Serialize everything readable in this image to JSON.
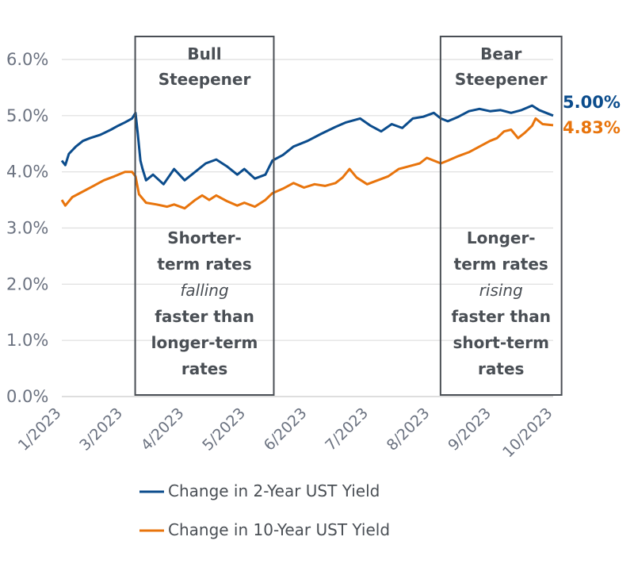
{
  "chart_data": {
    "type": "line",
    "y_ticks": [
      "6.0%",
      "5.0%",
      "4.0%",
      "3.0%",
      "2.0%",
      "1.0%",
      "0.0%"
    ],
    "ylim": [
      0,
      6
    ],
    "x_ticks": [
      "1/2023",
      "3/2023",
      "4/2023",
      "5/2023",
      "6/2023",
      "7/2023",
      "8/2023",
      "9/2023",
      "10/2023"
    ],
    "grid": true,
    "colors": {
      "two_year": "#0b4c8c",
      "ten_year": "#e8740c",
      "box": "#4a4f55",
      "grid": "#dedede"
    },
    "series": [
      {
        "name": "Change in 2-Year UST Yield",
        "key": "two_year",
        "values": [
          [
            0,
            4.2
          ],
          [
            0.05,
            4.12
          ],
          [
            0.1,
            4.32
          ],
          [
            0.2,
            4.45
          ],
          [
            0.3,
            4.55
          ],
          [
            0.4,
            4.6
          ],
          [
            0.55,
            4.66
          ],
          [
            0.7,
            4.75
          ],
          [
            0.8,
            4.82
          ],
          [
            0.9,
            4.88
          ],
          [
            1.0,
            4.95
          ],
          [
            1.05,
            5.05
          ],
          [
            1.08,
            4.7
          ],
          [
            1.12,
            4.2
          ],
          [
            1.15,
            4.05
          ],
          [
            1.2,
            3.85
          ],
          [
            1.3,
            3.95
          ],
          [
            1.45,
            3.78
          ],
          [
            1.6,
            4.05
          ],
          [
            1.75,
            3.85
          ],
          [
            1.9,
            4.0
          ],
          [
            2.05,
            4.15
          ],
          [
            2.2,
            4.22
          ],
          [
            2.35,
            4.1
          ],
          [
            2.5,
            3.95
          ],
          [
            2.6,
            4.05
          ],
          [
            2.75,
            3.88
          ],
          [
            2.9,
            3.95
          ],
          [
            3.0,
            4.2
          ],
          [
            3.15,
            4.3
          ],
          [
            3.3,
            4.45
          ],
          [
            3.5,
            4.55
          ],
          [
            3.7,
            4.68
          ],
          [
            3.9,
            4.8
          ],
          [
            4.05,
            4.88
          ],
          [
            4.25,
            4.95
          ],
          [
            4.4,
            4.82
          ],
          [
            4.55,
            4.72
          ],
          [
            4.7,
            4.85
          ],
          [
            4.85,
            4.78
          ],
          [
            5.0,
            4.95
          ],
          [
            5.15,
            4.98
          ],
          [
            5.3,
            5.05
          ],
          [
            5.4,
            4.95
          ],
          [
            5.5,
            4.9
          ],
          [
            5.65,
            4.98
          ],
          [
            5.8,
            5.08
          ],
          [
            5.95,
            5.12
          ],
          [
            6.1,
            5.08
          ],
          [
            6.25,
            5.1
          ],
          [
            6.4,
            5.05
          ],
          [
            6.55,
            5.1
          ],
          [
            6.7,
            5.18
          ],
          [
            6.8,
            5.1
          ],
          [
            6.9,
            5.05
          ],
          [
            7.0,
            5.0
          ]
        ]
      },
      {
        "name": "Change in 10-Year UST Yield",
        "key": "ten_year",
        "values": [
          [
            0,
            3.5
          ],
          [
            0.05,
            3.4
          ],
          [
            0.15,
            3.55
          ],
          [
            0.3,
            3.65
          ],
          [
            0.45,
            3.75
          ],
          [
            0.6,
            3.85
          ],
          [
            0.75,
            3.92
          ],
          [
            0.9,
            4.0
          ],
          [
            1.0,
            4.0
          ],
          [
            1.05,
            3.92
          ],
          [
            1.1,
            3.6
          ],
          [
            1.2,
            3.45
          ],
          [
            1.35,
            3.42
          ],
          [
            1.5,
            3.38
          ],
          [
            1.6,
            3.42
          ],
          [
            1.75,
            3.35
          ],
          [
            1.9,
            3.5
          ],
          [
            2.0,
            3.58
          ],
          [
            2.1,
            3.5
          ],
          [
            2.2,
            3.58
          ],
          [
            2.35,
            3.48
          ],
          [
            2.5,
            3.4
          ],
          [
            2.6,
            3.45
          ],
          [
            2.75,
            3.38
          ],
          [
            2.9,
            3.5
          ],
          [
            3.0,
            3.62
          ],
          [
            3.15,
            3.7
          ],
          [
            3.3,
            3.8
          ],
          [
            3.45,
            3.72
          ],
          [
            3.6,
            3.78
          ],
          [
            3.75,
            3.75
          ],
          [
            3.9,
            3.8
          ],
          [
            4.0,
            3.9
          ],
          [
            4.1,
            4.05
          ],
          [
            4.2,
            3.9
          ],
          [
            4.35,
            3.78
          ],
          [
            4.5,
            3.85
          ],
          [
            4.65,
            3.92
          ],
          [
            4.8,
            4.05
          ],
          [
            4.95,
            4.1
          ],
          [
            5.1,
            4.15
          ],
          [
            5.2,
            4.25
          ],
          [
            5.3,
            4.2
          ],
          [
            5.4,
            4.15
          ],
          [
            5.5,
            4.2
          ],
          [
            5.65,
            4.28
          ],
          [
            5.8,
            4.35
          ],
          [
            5.95,
            4.45
          ],
          [
            6.1,
            4.55
          ],
          [
            6.2,
            4.6
          ],
          [
            6.3,
            4.72
          ],
          [
            6.4,
            4.75
          ],
          [
            6.5,
            4.6
          ],
          [
            6.6,
            4.7
          ],
          [
            6.7,
            4.82
          ],
          [
            6.75,
            4.95
          ],
          [
            6.85,
            4.85
          ],
          [
            7.0,
            4.83
          ]
        ]
      }
    ],
    "end_labels": [
      {
        "text": "5.00%",
        "key": "two_year"
      },
      {
        "text": "4.83%",
        "key": "ten_year"
      }
    ],
    "annotations": [
      {
        "title": [
          "Bull",
          "Steepener"
        ],
        "x_range": [
          1,
          3.02
        ],
        "body": [
          {
            "t": "Shorter-",
            "i": false
          },
          {
            "t": "term rates",
            "i": false
          },
          {
            "t": "falling",
            "i": true
          },
          {
            "t": "faster than",
            "i": false
          },
          {
            "t": "longer-term",
            "i": false
          },
          {
            "t": "rates",
            "i": false
          }
        ]
      },
      {
        "title": [
          "Bear",
          "Steepener"
        ],
        "x_range": [
          5.35,
          7.12
        ],
        "body": [
          {
            "t": "Longer-",
            "i": false
          },
          {
            "t": "term rates",
            "i": false
          },
          {
            "t": "rising",
            "i": true
          },
          {
            "t": "faster than",
            "i": false
          },
          {
            "t": "short-term",
            "i": false
          },
          {
            "t": "rates",
            "i": false
          }
        ]
      }
    ],
    "legend": [
      "Change in 2-Year UST Yield",
      "Change in 10-Year UST Yield"
    ]
  }
}
